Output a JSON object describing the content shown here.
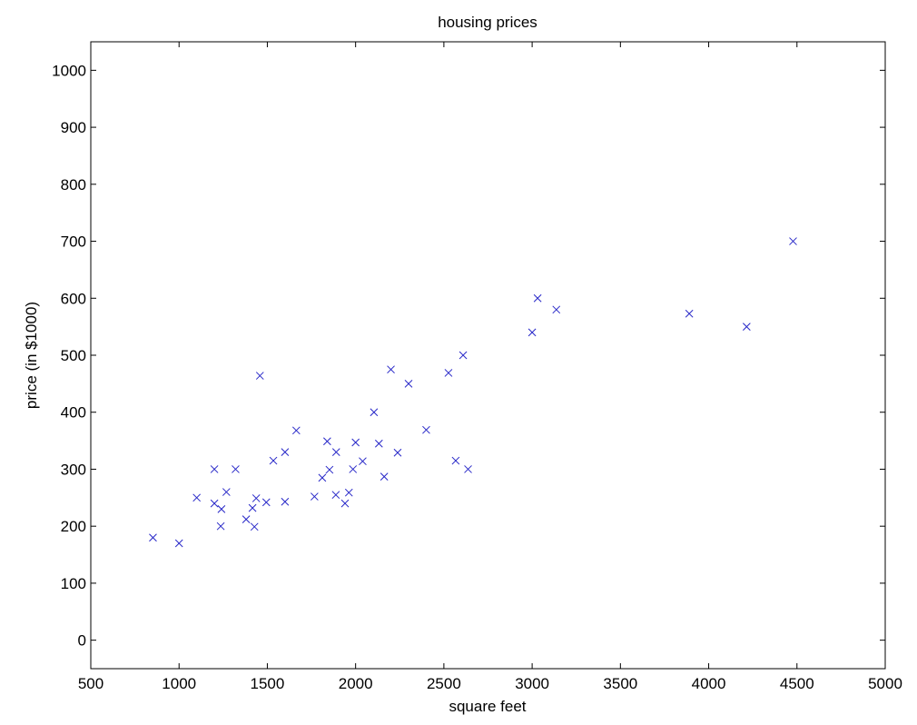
{
  "chart_data": {
    "type": "scatter",
    "title": "housing prices",
    "xlabel": "square feet",
    "ylabel": "price (in $1000)",
    "xlim": [
      500,
      5000
    ],
    "ylim": [
      -50,
      1050
    ],
    "xticks": [
      500,
      1000,
      1500,
      2000,
      2500,
      3000,
      3500,
      4000,
      4500,
      5000
    ],
    "yticks": [
      0,
      100,
      200,
      300,
      400,
      500,
      600,
      700,
      800,
      900,
      1000
    ],
    "marker": "x",
    "marker_color": "#2727c8",
    "grid": false,
    "points": [
      [
        852,
        180
      ],
      [
        1000,
        170
      ],
      [
        1100,
        250
      ],
      [
        1200,
        300
      ],
      [
        1200,
        240
      ],
      [
        1236,
        200
      ],
      [
        1240,
        230
      ],
      [
        1268,
        260
      ],
      [
        1320,
        300
      ],
      [
        1380,
        212
      ],
      [
        1416,
        232
      ],
      [
        1427,
        199
      ],
      [
        1437,
        249
      ],
      [
        1458,
        464
      ],
      [
        1494,
        242
      ],
      [
        1534,
        315
      ],
      [
        1600,
        243
      ],
      [
        1600,
        330
      ],
      [
        1664,
        368
      ],
      [
        1767,
        252
      ],
      [
        1811,
        285
      ],
      [
        1839,
        349
      ],
      [
        1852,
        299
      ],
      [
        1888,
        255
      ],
      [
        1890,
        330
      ],
      [
        1940,
        240
      ],
      [
        1962,
        259
      ],
      [
        1985,
        300
      ],
      [
        2000,
        347
      ],
      [
        2040,
        314
      ],
      [
        2104,
        400
      ],
      [
        2132,
        345
      ],
      [
        2162,
        287
      ],
      [
        2200,
        475
      ],
      [
        2238,
        329
      ],
      [
        2300,
        450
      ],
      [
        2400,
        369
      ],
      [
        2526,
        469
      ],
      [
        2567,
        315
      ],
      [
        2609,
        500
      ],
      [
        2637,
        300
      ],
      [
        3000,
        540
      ],
      [
        3031,
        600
      ],
      [
        3137,
        580
      ],
      [
        3890,
        573
      ],
      [
        4215,
        550
      ],
      [
        4478,
        700
      ]
    ]
  }
}
